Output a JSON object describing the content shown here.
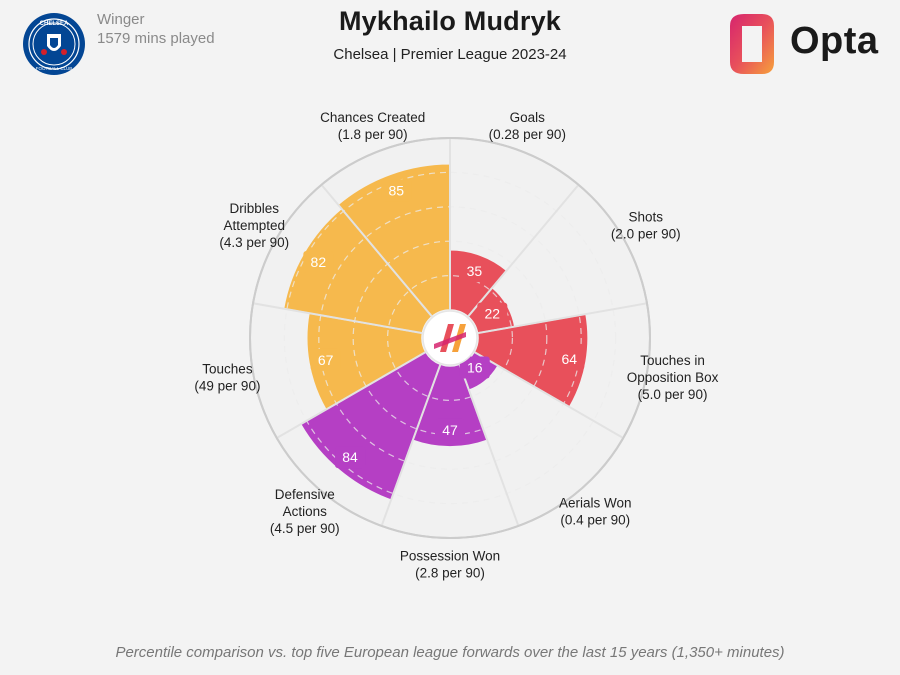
{
  "header": {
    "role": "Winger",
    "minutes": "1579 mins played",
    "title": "Mykhailo Mudryk",
    "subtitle": "Chelsea | Premier League 2023-24",
    "brand": "Opta",
    "crest_text": "CHELSEA FOOTBALL CLUB"
  },
  "footnote": "Percentile comparison vs. top five European league forwards over the last 15 years (1,350+ minutes)",
  "colors": {
    "attacking": "#e8505b",
    "possession": "#f6b94d",
    "defending": "#b53fc4",
    "ring": "#cccccc",
    "background": "#f3f3f3"
  },
  "chart_data": {
    "type": "polar-bar",
    "title": "Mykhailo Mudryk",
    "subtitle": "Chelsea | Premier League 2023-24",
    "scale": [
      0,
      100
    ],
    "grid_rings": [
      20,
      40,
      60,
      80,
      100
    ],
    "categories": [
      {
        "name": "Goals",
        "stat": "(0.28 per 90)",
        "value": 35,
        "group": "attacking"
      },
      {
        "name": "Shots",
        "stat": "(2.0 per 90)",
        "value": 22,
        "group": "attacking"
      },
      {
        "name": "Touches in Opposition Box",
        "lines": [
          "Touches in",
          "Opposition Box"
        ],
        "stat": "(5.0 per 90)",
        "value": 64,
        "group": "attacking"
      },
      {
        "name": "Aerials Won",
        "stat": "(0.4 per 90)",
        "value": 16,
        "group": "defending"
      },
      {
        "name": "Possession Won",
        "stat": "(2.8 per 90)",
        "value": 47,
        "group": "defending"
      },
      {
        "name": "Defensive Actions",
        "lines": [
          "Defensive",
          "Actions"
        ],
        "stat": "(4.5 per 90)",
        "value": 84,
        "group": "defending"
      },
      {
        "name": "Touches",
        "stat": "(49 per 90)",
        "value": 67,
        "group": "possession"
      },
      {
        "name": "Dribbles Attempted",
        "lines": [
          "Dribbles",
          "Attempted"
        ],
        "stat": "(4.3 per 90)",
        "value": 82,
        "group": "possession"
      },
      {
        "name": "Chances Created",
        "stat": "(1.8 per 90)",
        "value": 85,
        "group": "possession"
      }
    ]
  }
}
